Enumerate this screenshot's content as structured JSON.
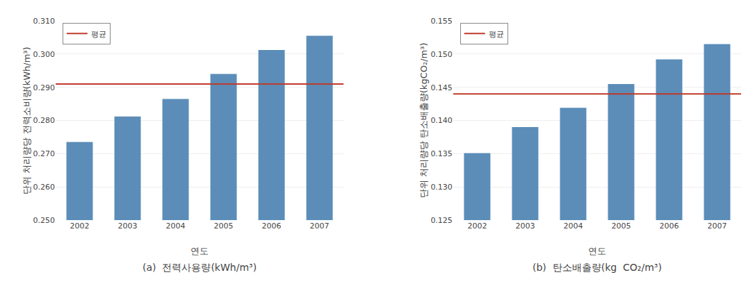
{
  "chart_data": [
    {
      "type": "bar",
      "title": "(a)  전력사용량(kWh/m³)",
      "x_label": "연도",
      "y_label": "단위 처리량당 전력소비량(kWh/m³)",
      "categories": [
        "2002",
        "2003",
        "2004",
        "2005",
        "2006",
        "2007"
      ],
      "values": [
        0.2735,
        0.2812,
        0.2865,
        0.294,
        0.3012,
        0.3055
      ],
      "color": "#5B8DB8",
      "average": {
        "name": "평균",
        "value": 0.291,
        "color": "#C0392B"
      },
      "ylim": [
        0.25,
        0.31
      ],
      "yticks": [
        {
          "value": 0.25,
          "label": "0.250"
        },
        {
          "value": 0.26,
          "label": "0.260"
        },
        {
          "value": 0.27,
          "label": "0.270"
        },
        {
          "value": 0.28,
          "label": "0.280"
        },
        {
          "value": 0.29,
          "label": "0.290"
        },
        {
          "value": 0.3,
          "label": "0.300"
        },
        {
          "value": 0.31,
          "label": "0.310"
        }
      ],
      "grid": true,
      "legend": "upper left"
    },
    {
      "type": "bar",
      "title": "(b)  탄소배출량(kg  CO₂/m³)",
      "x_label": "연도",
      "y_label": "단위 처리량당 탄소배출량(kgCO₂/m³)",
      "categories": [
        "2002",
        "2003",
        "2004",
        "2005",
        "2006",
        "2007"
      ],
      "values": [
        0.1351,
        0.139,
        0.1419,
        0.1455,
        0.1492,
        0.1515
      ],
      "color": "#5B8DB8",
      "average": {
        "name": "평균",
        "value": 0.144,
        "color": "#C0392B"
      },
      "ylim": [
        0.125,
        0.155
      ],
      "yticks": [
        {
          "value": 0.125,
          "label": "0.125"
        },
        {
          "value": 0.13,
          "label": "0.130"
        },
        {
          "value": 0.135,
          "label": "0.135"
        },
        {
          "value": 0.14,
          "label": "0.140"
        },
        {
          "value": 0.145,
          "label": "0.145"
        },
        {
          "value": 0.15,
          "label": "0.150"
        },
        {
          "value": 0.155,
          "label": "0.155"
        }
      ],
      "grid": true,
      "legend": "upper left"
    }
  ]
}
